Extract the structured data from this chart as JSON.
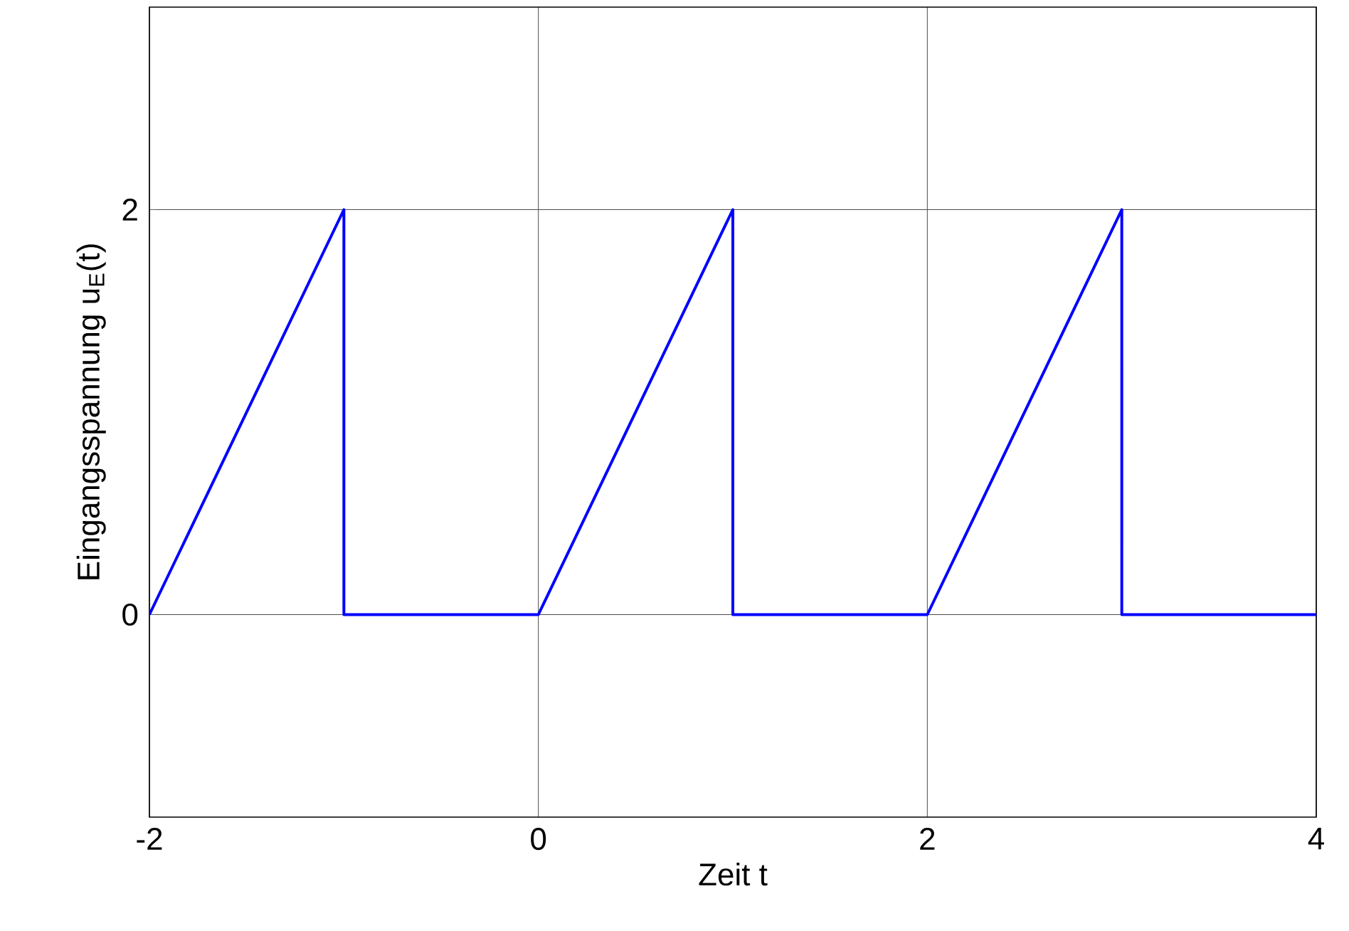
{
  "chart_data": {
    "type": "line",
    "xlabel": "Zeit t",
    "ylabel": "Eingangsspannung u$_{E}$(t)",
    "x": [
      -2,
      -1,
      -1,
      0,
      1,
      1,
      2,
      3,
      3,
      4
    ],
    "values": [
      0,
      2,
      0,
      0,
      2,
      0,
      0,
      2,
      0,
      0
    ],
    "color": "#0000ff",
    "line_style": "solid",
    "grid": true,
    "xlim": [
      -2,
      4
    ],
    "xticks": [
      -2,
      0,
      2,
      4
    ],
    "ylim": [
      -1,
      3
    ],
    "yticks": [
      0,
      2
    ]
  }
}
